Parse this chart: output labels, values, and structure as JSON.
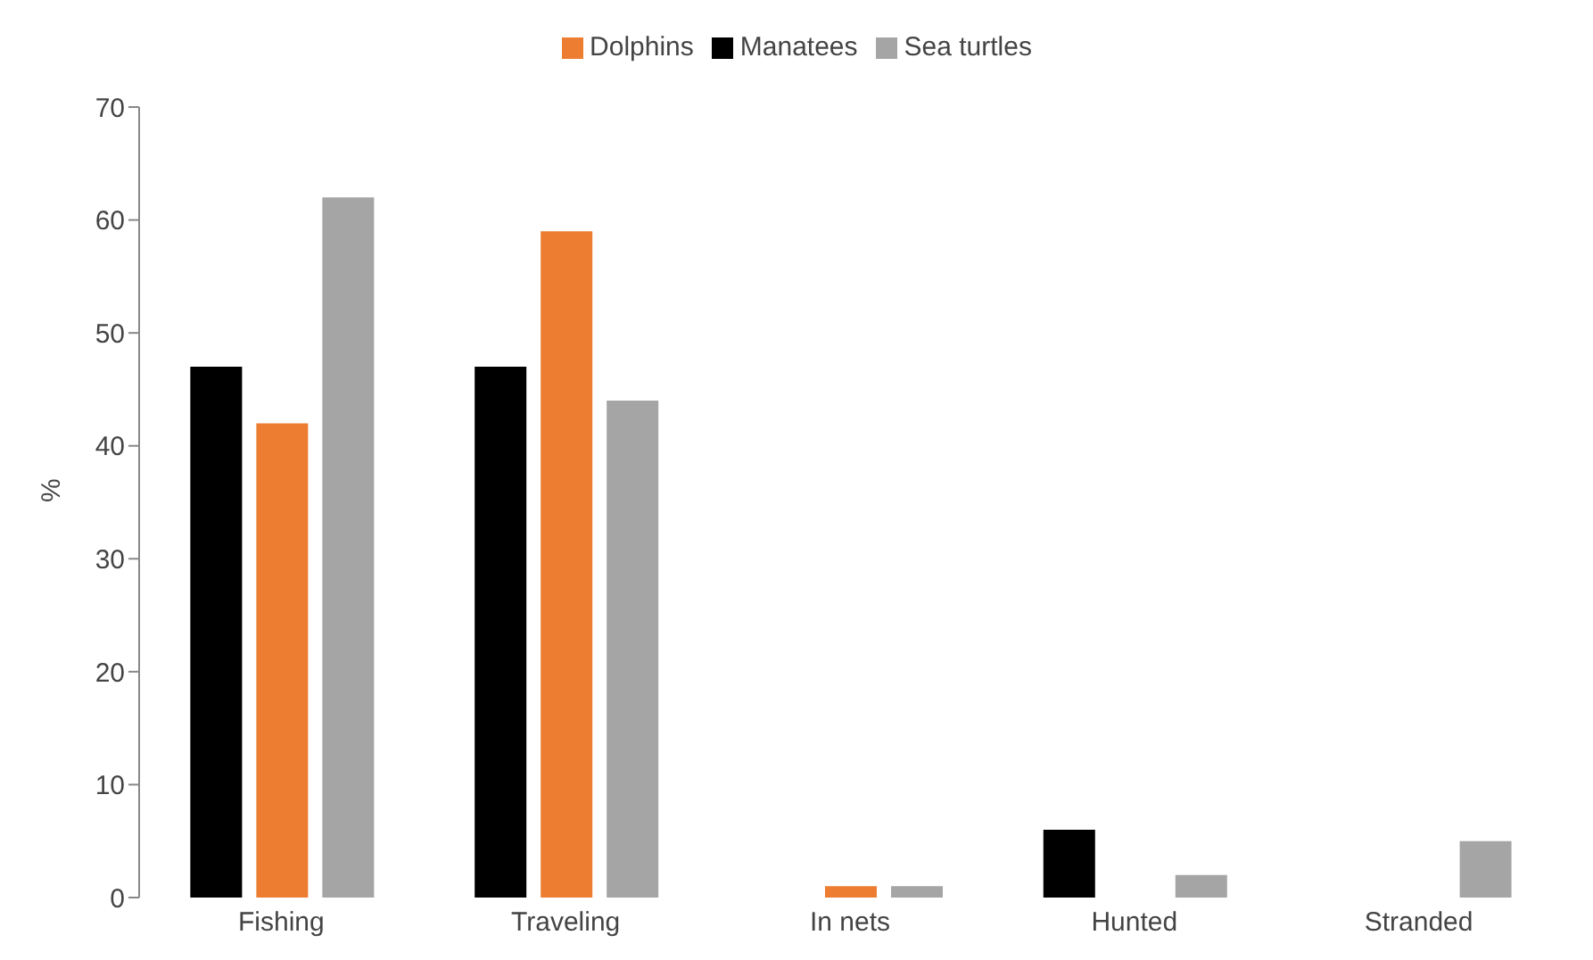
{
  "chart_data": {
    "type": "bar",
    "ylabel": "%",
    "categories": [
      "Fishing",
      "Traveling",
      "In nets",
      "Hunted",
      "Stranded"
    ],
    "series": [
      {
        "name": "Manatees",
        "color": "#000000",
        "values": [
          47,
          47,
          0,
          6,
          0
        ]
      },
      {
        "name": "Dolphins",
        "color": "#ed7d31",
        "values": [
          42,
          59,
          1,
          0,
          0
        ]
      },
      {
        "name": "Sea turtles",
        "color": "#a5a5a5",
        "values": [
          62,
          44,
          1,
          2,
          5
        ]
      }
    ],
    "ylim": [
      0,
      70
    ],
    "yticks": [
      0,
      10,
      20,
      30,
      40,
      50,
      60,
      70
    ],
    "grid": false,
    "legend": "top"
  }
}
